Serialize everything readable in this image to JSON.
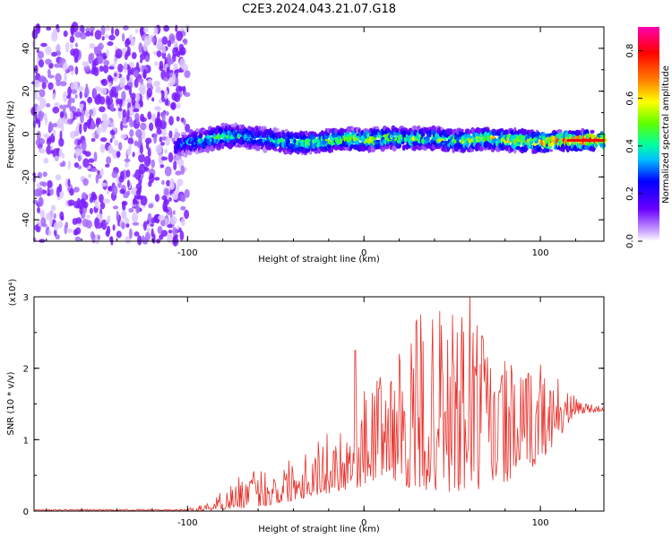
{
  "title": "C2E3.2024.043.21.07.G18",
  "chart_data": [
    {
      "type": "heatmap",
      "xlabel": "Height of straight line (km)",
      "ylabel": "Frequency (Hz)",
      "xlim": [
        -187,
        136
      ],
      "ylim": [
        -50,
        50
      ],
      "xticks": [
        -100,
        0,
        100
      ],
      "xtick_labels": [
        "-100",
        "0",
        "100"
      ],
      "yticks": [
        -40,
        -20,
        0,
        20,
        40
      ],
      "ytick_labels": [
        "-40",
        "-20",
        "0",
        "20",
        "40"
      ],
      "colorbar": {
        "label": "Normalized spectral amplitude",
        "range": [
          0.0,
          0.9
        ],
        "ticks": [
          0.0,
          0.2,
          0.4,
          0.6,
          0.8
        ],
        "tick_labels": [
          "0.0",
          "0.2",
          "0.4",
          "0.6",
          "0.8"
        ],
        "colormap": [
          "#ffffff",
          "#6a00ff",
          "#0000ff",
          "#00bfff",
          "#00ff80",
          "#80ff00",
          "#ffff00",
          "#ff8000",
          "#ff0000",
          "#ff00c0"
        ]
      },
      "noise_region_x": [
        -187,
        -100
      ],
      "ridge": {
        "x": [
          -107,
          -100,
          -90,
          -80,
          -70,
          -60,
          -50,
          -40,
          -30,
          -20,
          -10,
          0,
          10,
          20,
          30,
          40,
          50,
          60,
          70,
          80,
          90,
          100,
          110,
          120,
          136
        ],
        "freq": [
          -6,
          -4,
          -3,
          -1,
          -1,
          -2,
          -3,
          -4,
          -4,
          -3,
          -2,
          -3,
          -2,
          -2,
          -2,
          -2,
          -3,
          -3,
          -2,
          -3,
          -3,
          -4,
          -3,
          -3,
          -3
        ],
        "amplitude": [
          0.25,
          0.35,
          0.45,
          0.5,
          0.45,
          0.4,
          0.45,
          0.5,
          0.55,
          0.6,
          0.6,
          0.65,
          0.6,
          0.6,
          0.55,
          0.55,
          0.55,
          0.6,
          0.6,
          0.65,
          0.65,
          0.7,
          0.8,
          0.88,
          0.88
        ]
      }
    },
    {
      "type": "line",
      "xlabel": "Height of straight line (km)",
      "ylabel": "SNR (10 * v/v)",
      "yscale_label": "(x10⁴)",
      "xlim": [
        -187,
        136
      ],
      "ylim": [
        0,
        3
      ],
      "xticks": [
        -100,
        0,
        100
      ],
      "xtick_labels": [
        "-100",
        "0",
        "100"
      ],
      "yticks": [
        0,
        1,
        2,
        3
      ],
      "ytick_labels": [
        "0",
        "1",
        "2",
        "3"
      ],
      "color": "#e8302a",
      "series": [
        {
          "x": [
            -187,
            -150,
            -120,
            -100,
            -90,
            -80,
            -70,
            -60,
            -50,
            -40,
            -30,
            -20,
            -10,
            0,
            10,
            20,
            30,
            40,
            50,
            60,
            70,
            80,
            90,
            100,
            110,
            120,
            136
          ],
          "envelope_max": [
            0.03,
            0.03,
            0.02,
            0.04,
            0.1,
            0.3,
            0.5,
            0.6,
            0.65,
            0.8,
            1.0,
            1.1,
            1.3,
            1.7,
            2.0,
            2.1,
            2.7,
            2.7,
            2.7,
            3.05,
            2.4,
            2.1,
            2.0,
            2.0,
            1.8,
            1.6,
            1.45
          ],
          "envelope_min": [
            0.0,
            0.0,
            0.0,
            0.0,
            0.0,
            0.02,
            0.04,
            0.06,
            0.08,
            0.15,
            0.2,
            0.25,
            0.3,
            0.35,
            0.5,
            0.4,
            0.25,
            0.3,
            0.2,
            0.25,
            0.3,
            0.4,
            0.5,
            0.7,
            1.0,
            1.35,
            1.4
          ],
          "peaks": [
            {
              "x": -5,
              "value": 2.25
            },
            {
              "x": 20,
              "value": 2.2
            },
            {
              "x": 32,
              "value": 2.75
            },
            {
              "x": 43,
              "value": 2.8
            },
            {
              "x": 50,
              "value": 2.75
            },
            {
              "x": 60,
              "value": 3.05
            },
            {
              "x": 67,
              "value": 2.45
            },
            {
              "x": 80,
              "value": 2.1
            },
            {
              "x": 100,
              "value": 2.05
            },
            {
              "x": 110,
              "value": 1.85
            }
          ]
        }
      ]
    }
  ]
}
